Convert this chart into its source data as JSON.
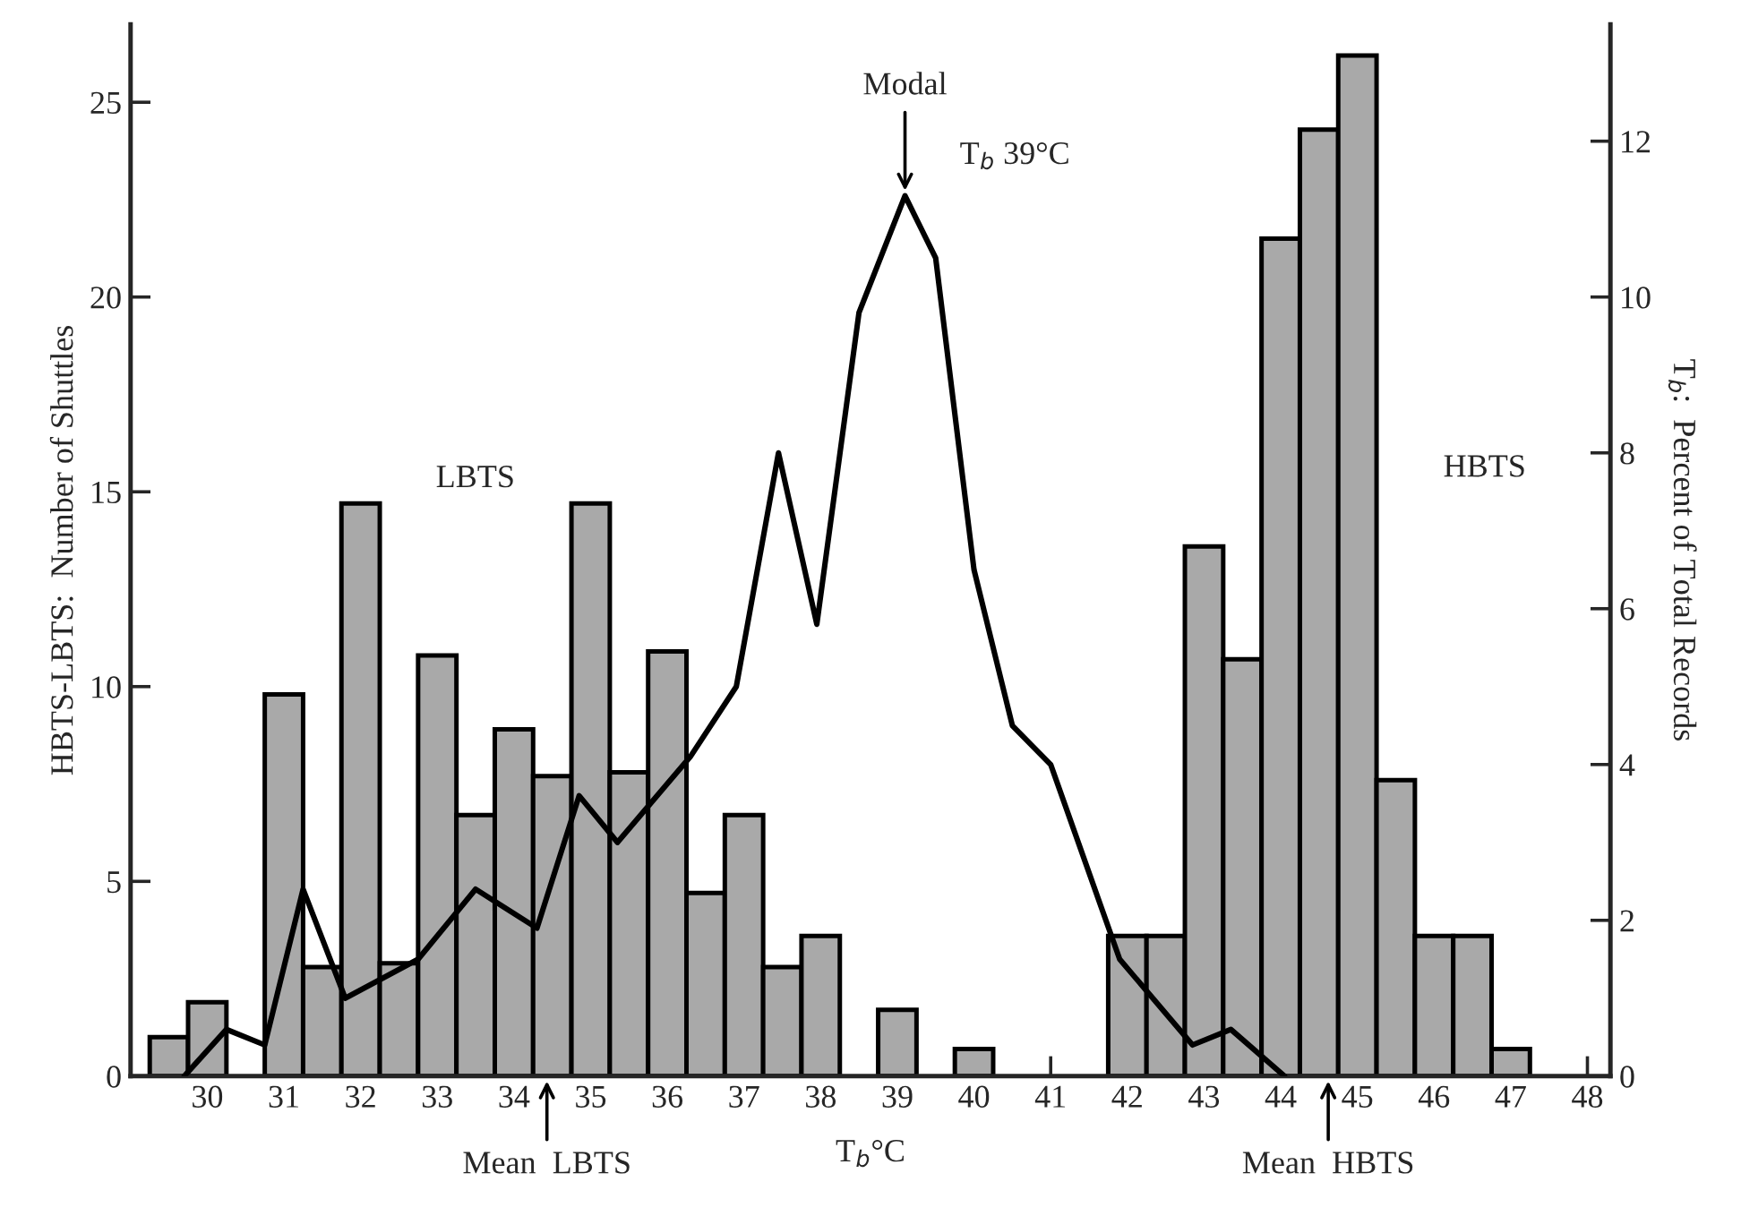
{
  "chart_data": {
    "type": "bar",
    "xlabel": "T$_{b}$°C",
    "ylabel": "HBTS-LBTS:  Number of Shuttles",
    "y2label": "T$_{b}$:  Percent of Total Records",
    "series": [
      {
        "color": "#a9a9a9",
        "x": [
          29.5,
          30,
          31,
          31.5,
          32,
          32.5,
          33,
          33.5,
          34,
          34.5,
          35,
          35.5,
          36,
          36.5,
          37,
          37.5,
          38,
          39,
          40,
          42,
          42.5,
          43,
          43.5,
          44,
          44.5,
          45,
          45.5,
          46,
          46.5,
          47
        ],
        "values": [
          1.0,
          1.9,
          9.8,
          2.8,
          14.7,
          2.9,
          10.8,
          6.7,
          8.9,
          7.7,
          14.7,
          7.8,
          10.9,
          4.7,
          6.7,
          2.8,
          3.6,
          1.7,
          0.7,
          3.6,
          3.6,
          13.6,
          10.7,
          21.5,
          24.3,
          26.2,
          7.6,
          3.6,
          3.6,
          0.7
        ]
      },
      {
        "type": "line",
        "axis": "y2",
        "color": "#000000",
        "x": [
          29.7,
          30.25,
          30.75,
          31.25,
          31.8,
          32.75,
          33.5,
          34.3,
          34.85,
          35.35,
          36.3,
          36.9,
          37.45,
          37.95,
          38.5,
          39.1,
          39.5,
          40.0,
          40.5,
          41.0,
          41.9,
          42.85,
          43.35,
          44.05
        ],
        "values": [
          0,
          0.6,
          0.4,
          2.4,
          1.0,
          1.5,
          2.4,
          1.9,
          3.6,
          3.0,
          4.1,
          5.0,
          8.0,
          5.8,
          9.8,
          11.3,
          10.5,
          6.5,
          4.5,
          4.0,
          1.5,
          0.4,
          0.6,
          0
        ]
      }
    ],
    "xlim": [
      29,
      48.3
    ],
    "xticks": [
      30,
      31,
      32,
      33,
      34,
      35,
      36,
      37,
      38,
      39,
      40,
      41,
      42,
      43,
      44,
      45,
      46,
      47,
      48
    ],
    "ylim": [
      0,
      27
    ],
    "yticks": [
      0,
      5,
      10,
      15,
      20,
      25
    ],
    "y2lim": [
      0,
      13.5
    ],
    "y2ticks": [
      0,
      2,
      4,
      6,
      8,
      10,
      12
    ],
    "grid": false,
    "legend": false,
    "annotations": [
      {
        "text": "Modal",
        "x": 39.1,
        "y": 22.6
      },
      {
        "text": "T$_{b}$ 39°C",
        "x": 39.1,
        "y": 22.6
      },
      "LBTS",
      "HBTS",
      {
        "text": "Mean  LBTS",
        "x": 34.43,
        "y": 0
      },
      {
        "text": "Mean  HBTS",
        "x": 44.62,
        "y": 0
      }
    ]
  }
}
